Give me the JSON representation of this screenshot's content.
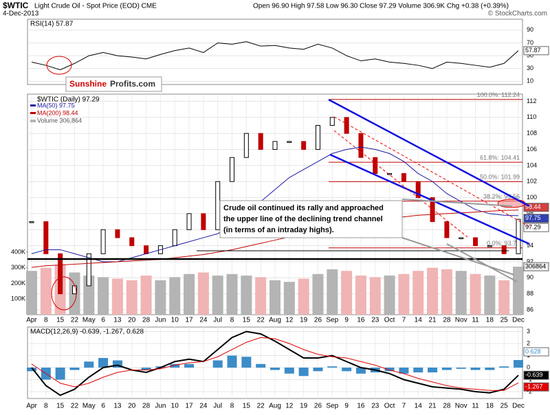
{
  "header": {
    "symbol": "$WTIC",
    "name": "Light Crude Oil - Spot Price (EOD) CME",
    "date": "4-Dec-2013",
    "quote": "Open 96.90 High 97.58 Low 96.30 Close 97.29 Volume 306.9K Chg +0.38 (+0.39%)",
    "credit": "© StockCharts.com"
  },
  "watermark": {
    "red": "Sunshine",
    "dark": "Profits.com"
  },
  "chart_data": [
    {
      "type": "line",
      "title": "RSI(14) 57.87",
      "color": "#000000",
      "values": [
        40,
        35,
        28,
        38,
        50,
        55,
        50,
        48,
        45,
        52,
        58,
        62,
        55,
        70,
        68,
        72,
        65,
        66,
        62,
        60,
        68,
        62,
        50,
        42,
        45,
        40,
        38,
        35,
        30,
        40,
        38,
        35,
        32,
        38,
        57.87
      ],
      "ylim": [
        5,
        107
      ],
      "yticks": [
        10,
        30,
        50,
        70,
        90
      ],
      "grid": true
    },
    {
      "type": "candlestick",
      "title": "$WTIC (Daily) 97.29",
      "up_color": "#000000",
      "down_color": "#c00000",
      "categories": [
        "Apr",
        "8",
        "15",
        "22",
        "May",
        "6",
        "13",
        "20",
        "28",
        "Jun",
        "10",
        "17",
        "24",
        "Jul",
        "8",
        "15",
        "22",
        "Aug",
        "12",
        "19",
        "26",
        "Sep",
        "9",
        "16",
        "23",
        "Oct",
        "7",
        "14",
        "21",
        "28",
        "Nov",
        "11",
        "18",
        "25",
        "Dec"
      ],
      "values": [
        97,
        93,
        88,
        89,
        93,
        96,
        95,
        94,
        93,
        94,
        96,
        98,
        96,
        102,
        105,
        108,
        106,
        107,
        107,
        106,
        109,
        110,
        108,
        105,
        103,
        103,
        102,
        100,
        97,
        95,
        95,
        94,
        94,
        93,
        97.29
      ],
      "series": [
        {
          "name": "MA(50) 97.75",
          "color": "#1a1aa0",
          "values": [
            93,
            93.5,
            93.5,
            93,
            92.5,
            92,
            92,
            92.5,
            93,
            93.5,
            94,
            94.5,
            95,
            95.5,
            96.5,
            98,
            99.5,
            101,
            102.5,
            103.5,
            104.5,
            105.5,
            106,
            106.3,
            106,
            105.5,
            104.5,
            103,
            102,
            100.5,
            99.5,
            98.5,
            98,
            97.8,
            97.75
          ]
        },
        {
          "name": "MA(200) 98.44",
          "color": "#c00000",
          "values": [
            91.3,
            91.5,
            91.6,
            91.7,
            91.8,
            91.9,
            92,
            92.1,
            92.2,
            92.3,
            92.5,
            92.7,
            92.9,
            93.2,
            93.5,
            93.9,
            94.3,
            94.7,
            95.1,
            95.5,
            95.9,
            96.3,
            96.7,
            97,
            97.2,
            97.4,
            97.6,
            97.8,
            97.9,
            98,
            98.1,
            98.2,
            98.3,
            98.4,
            98.44
          ]
        }
      ],
      "volume": {
        "name": "Volume 306,864",
        "up_color": "#b4b4b4",
        "down_color": "#f0b4b4",
        "values": [
          280000,
          300000,
          320000,
          270000,
          250000,
          240000,
          230000,
          220000,
          250000,
          220000,
          240000,
          260000,
          270000,
          250000,
          260000,
          250000,
          240000,
          220000,
          210000,
          230000,
          260000,
          290000,
          280000,
          250000,
          240000,
          250000,
          260000,
          280000,
          300000,
          290000,
          280000,
          260000,
          250000,
          220000,
          306864
        ]
      },
      "ylim": [
        85.4,
        112.9
      ],
      "yticks": [
        86,
        88,
        90,
        92,
        94,
        96,
        98,
        100,
        102,
        104,
        106,
        108,
        110,
        112
      ],
      "vlim": [
        0,
        1410000
      ],
      "vticks": [
        {
          "value": 100000,
          "label": "100K"
        },
        {
          "value": 200000,
          "label": "200K"
        },
        {
          "value": 300000,
          "label": "300K"
        },
        {
          "value": 400000,
          "label": "400K"
        }
      ],
      "fib_levels": [
        {
          "value": 112.24,
          "label": "100.0%: 112.24"
        },
        {
          "value": 104.41,
          "label": "61.8%: 104.41"
        },
        {
          "value": 101.99,
          "label": "50.0%: 101.99"
        },
        {
          "value": 99.56,
          "label": "38.2%: 99.56"
        },
        {
          "value": 93.73,
          "label": "0.0%: 93.73"
        }
      ],
      "annotation": [
        "Crude oil continued its rally and approached",
        "the upper line of the declining trend channel",
        "(in terms of an intraday highs)."
      ],
      "grid": true
    },
    {
      "type": "macd",
      "title": "MACD(12,26,9) -0.639, -1.267, 0.628",
      "categories": [
        "Apr",
        "8",
        "15",
        "22",
        "May",
        "6",
        "13",
        "20",
        "28",
        "Jun",
        "10",
        "17",
        "24",
        "Jul",
        "8",
        "15",
        "22",
        "Aug",
        "12",
        "19",
        "26",
        "Sep",
        "9",
        "16",
        "23",
        "Oct",
        "7",
        "14",
        "21",
        "28",
        "Nov",
        "11",
        "18",
        "25",
        "Dec"
      ],
      "series": [
        {
          "color": "#000000",
          "values": [
            0,
            -1.5,
            -2.3,
            -1.8,
            -0.8,
            0,
            0.2,
            -0.2,
            -0.4,
            0,
            0.5,
            0.7,
            0.5,
            1.5,
            2.5,
            3,
            2.8,
            2.2,
            1.5,
            0.8,
            0.8,
            1,
            0.5,
            0,
            -0.2,
            -0.5,
            -1,
            -1.3,
            -1.6,
            -1.7,
            -1.8,
            -2,
            -2.1,
            -1.8,
            -0.639
          ]
        },
        {
          "color": "#e00000",
          "values": [
            0.3,
            -0.5,
            -1.3,
            -1.6,
            -1.3,
            -0.8,
            -0.4,
            -0.2,
            -0.2,
            -0.1,
            0.2,
            0.4,
            0.5,
            0.9,
            1.5,
            2.1,
            2.5,
            2.4,
            2,
            1.5,
            1.1,
            0.9,
            0.8,
            0.5,
            0.2,
            -0.2,
            -0.5,
            -0.9,
            -1.2,
            -1.5,
            -1.7,
            -1.8,
            -1.9,
            -1.9,
            -1.267
          ]
        }
      ],
      "histogram": {
        "color": "#3c8cc8",
        "values": [
          -0.3,
          -1,
          -1,
          -0.2,
          0.5,
          0.8,
          0.6,
          0,
          -0.2,
          0.1,
          0.3,
          0.3,
          0,
          0.6,
          1,
          0.9,
          0.3,
          -0.2,
          -0.5,
          -0.7,
          -0.3,
          0.1,
          -0.3,
          -0.5,
          -0.4,
          -0.3,
          -0.5,
          -0.4,
          -0.4,
          -0.2,
          -0.1,
          -0.2,
          -0.2,
          0.1,
          0.628
        ]
      },
      "ylim": [
        -2.57,
        3.37
      ],
      "yticks": [
        -2,
        -1,
        0,
        1,
        2,
        3
      ],
      "grid": true
    }
  ]
}
